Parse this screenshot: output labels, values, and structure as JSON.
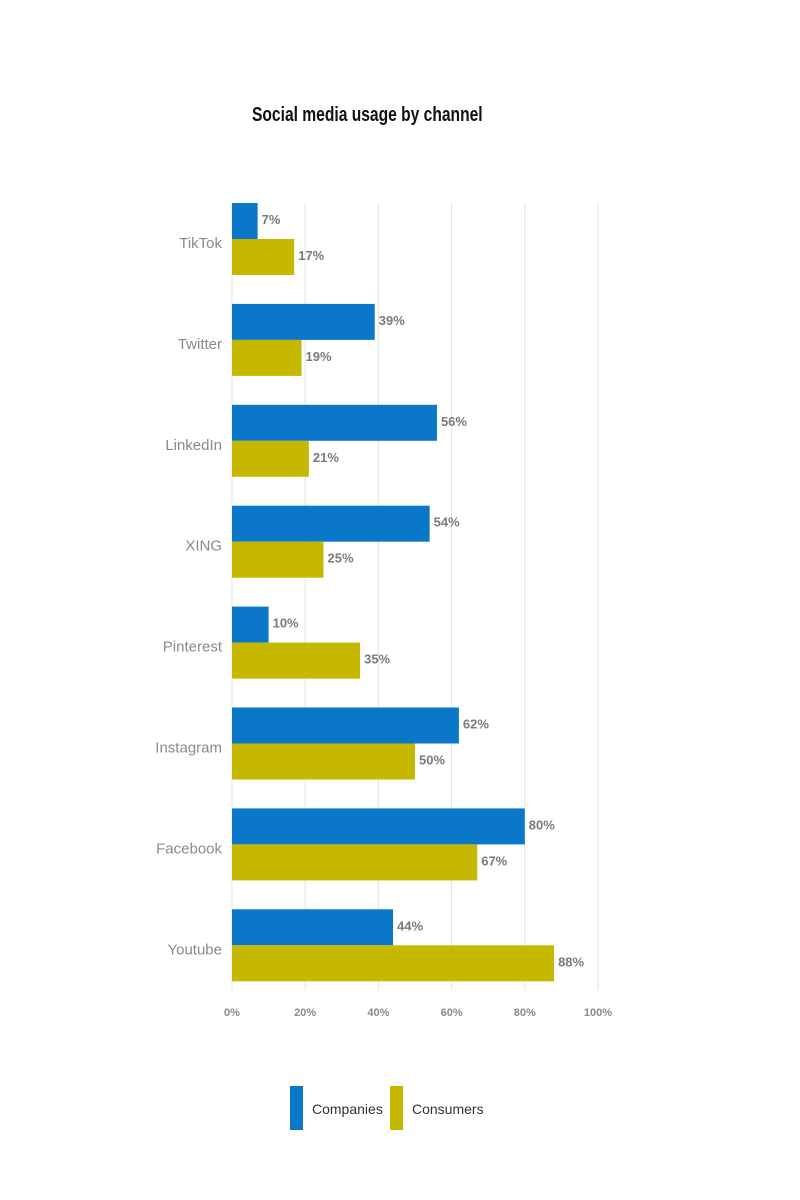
{
  "chart_data": {
    "type": "bar",
    "orientation": "horizontal",
    "title": "Social media usage by channel",
    "categories": [
      "TikTok",
      "Twitter",
      "LinkedIn",
      "XING",
      "Pinterest",
      "Instagram",
      "Facebook",
      "Youtube"
    ],
    "series": [
      {
        "name": "Companies",
        "color": "#0a77c8",
        "values": [
          7,
          39,
          56,
          54,
          10,
          62,
          80,
          44
        ]
      },
      {
        "name": "Consumers",
        "color": "#c6b800",
        "values": [
          17,
          19,
          21,
          25,
          35,
          50,
          67,
          88
        ]
      }
    ],
    "xlim": [
      0,
      100
    ],
    "xticks": [
      0,
      20,
      40,
      60,
      80,
      100
    ],
    "tick_suffix": "%",
    "value_suffix": "%",
    "grid": "vertical",
    "legend": "bottom"
  }
}
